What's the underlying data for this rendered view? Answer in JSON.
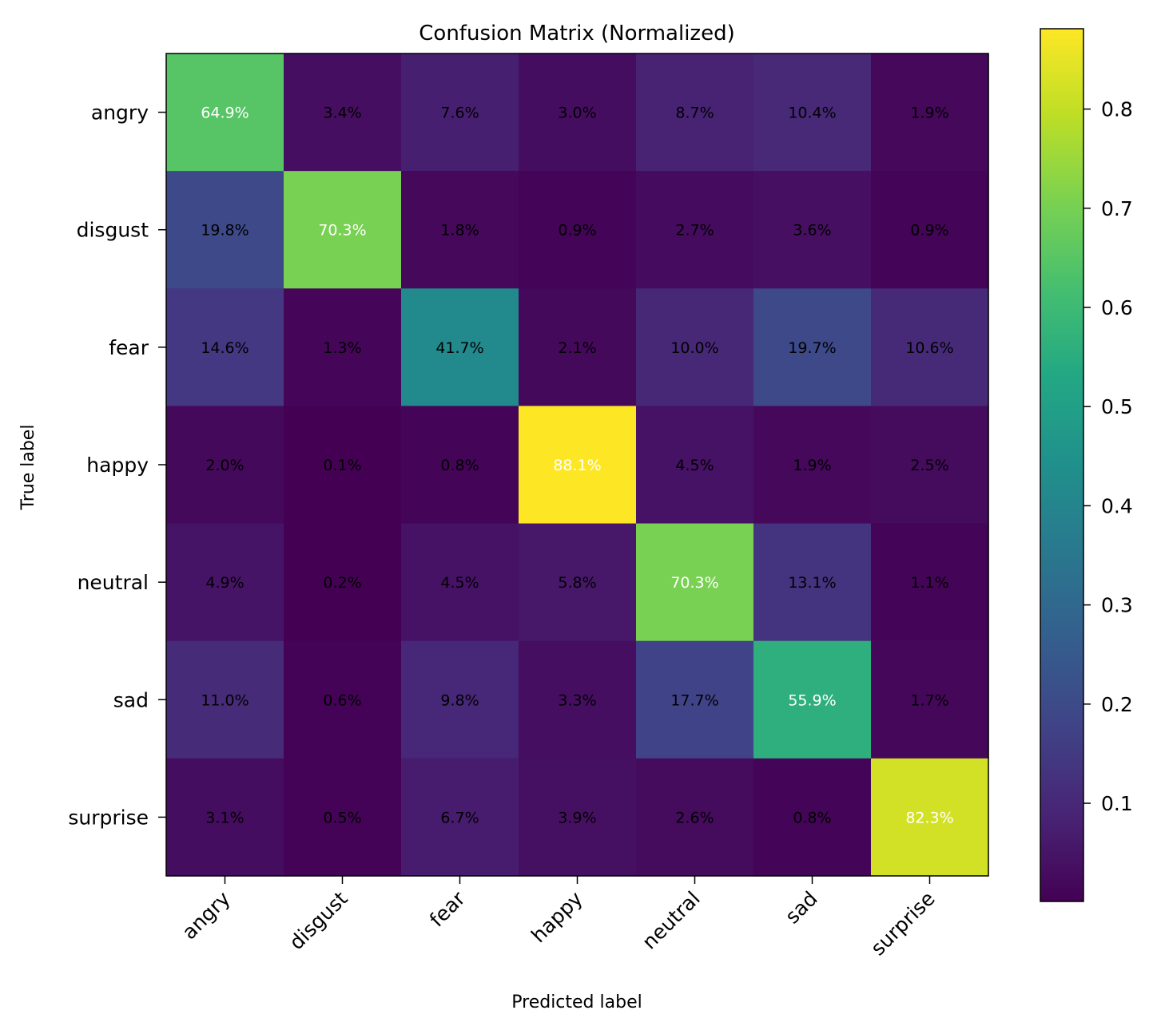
{
  "chart_data": {
    "type": "heatmap",
    "title": "Confusion Matrix (Normalized)",
    "xlabel": "Predicted label",
    "ylabel": "True label",
    "x_categories": [
      "angry",
      "disgust",
      "fear",
      "happy",
      "neutral",
      "sad",
      "surprise"
    ],
    "y_categories": [
      "angry",
      "disgust",
      "fear",
      "happy",
      "neutral",
      "sad",
      "surprise"
    ],
    "values": [
      [
        0.649,
        0.034,
        0.076,
        0.03,
        0.087,
        0.104,
        0.019
      ],
      [
        0.198,
        0.703,
        0.018,
        0.009,
        0.027,
        0.036,
        0.009
      ],
      [
        0.146,
        0.013,
        0.417,
        0.021,
        0.1,
        0.197,
        0.106
      ],
      [
        0.02,
        0.001,
        0.008,
        0.881,
        0.045,
        0.019,
        0.025
      ],
      [
        0.049,
        0.002,
        0.045,
        0.058,
        0.703,
        0.131,
        0.011
      ],
      [
        0.11,
        0.006,
        0.098,
        0.033,
        0.177,
        0.559,
        0.017
      ],
      [
        0.031,
        0.005,
        0.067,
        0.039,
        0.026,
        0.008,
        0.823
      ]
    ],
    "cell_labels": [
      [
        "64.9%",
        "3.4%",
        "7.6%",
        "3.0%",
        "8.7%",
        "10.4%",
        "1.9%"
      ],
      [
        "19.8%",
        "70.3%",
        "1.8%",
        "0.9%",
        "2.7%",
        "3.6%",
        "0.9%"
      ],
      [
        "14.6%",
        "1.3%",
        "41.7%",
        "2.1%",
        "10.0%",
        "19.7%",
        "10.6%"
      ],
      [
        "2.0%",
        "0.1%",
        "0.8%",
        "88.1%",
        "4.5%",
        "1.9%",
        "2.5%"
      ],
      [
        "4.9%",
        "0.2%",
        "4.5%",
        "5.8%",
        "70.3%",
        "13.1%",
        "1.1%"
      ],
      [
        "11.0%",
        "0.6%",
        "9.8%",
        "3.3%",
        "17.7%",
        "55.9%",
        "1.7%"
      ],
      [
        "3.1%",
        "0.5%",
        "6.7%",
        "3.9%",
        "2.6%",
        "0.8%",
        "82.3%"
      ]
    ],
    "colormap": "viridis",
    "vmin": 0.001,
    "vmax": 0.881,
    "colorbar_ticks": [
      0.1,
      0.2,
      0.3,
      0.4,
      0.5,
      0.6,
      0.7,
      0.8
    ],
    "colorbar_tick_labels": [
      "0.1",
      "0.2",
      "0.3",
      "0.4",
      "0.5",
      "0.6",
      "0.7",
      "0.8"
    ],
    "text_threshold": 0.5,
    "text_colors": {
      "dark_cell": "#ffffff",
      "light_cell": "#000000"
    },
    "grid": false
  }
}
